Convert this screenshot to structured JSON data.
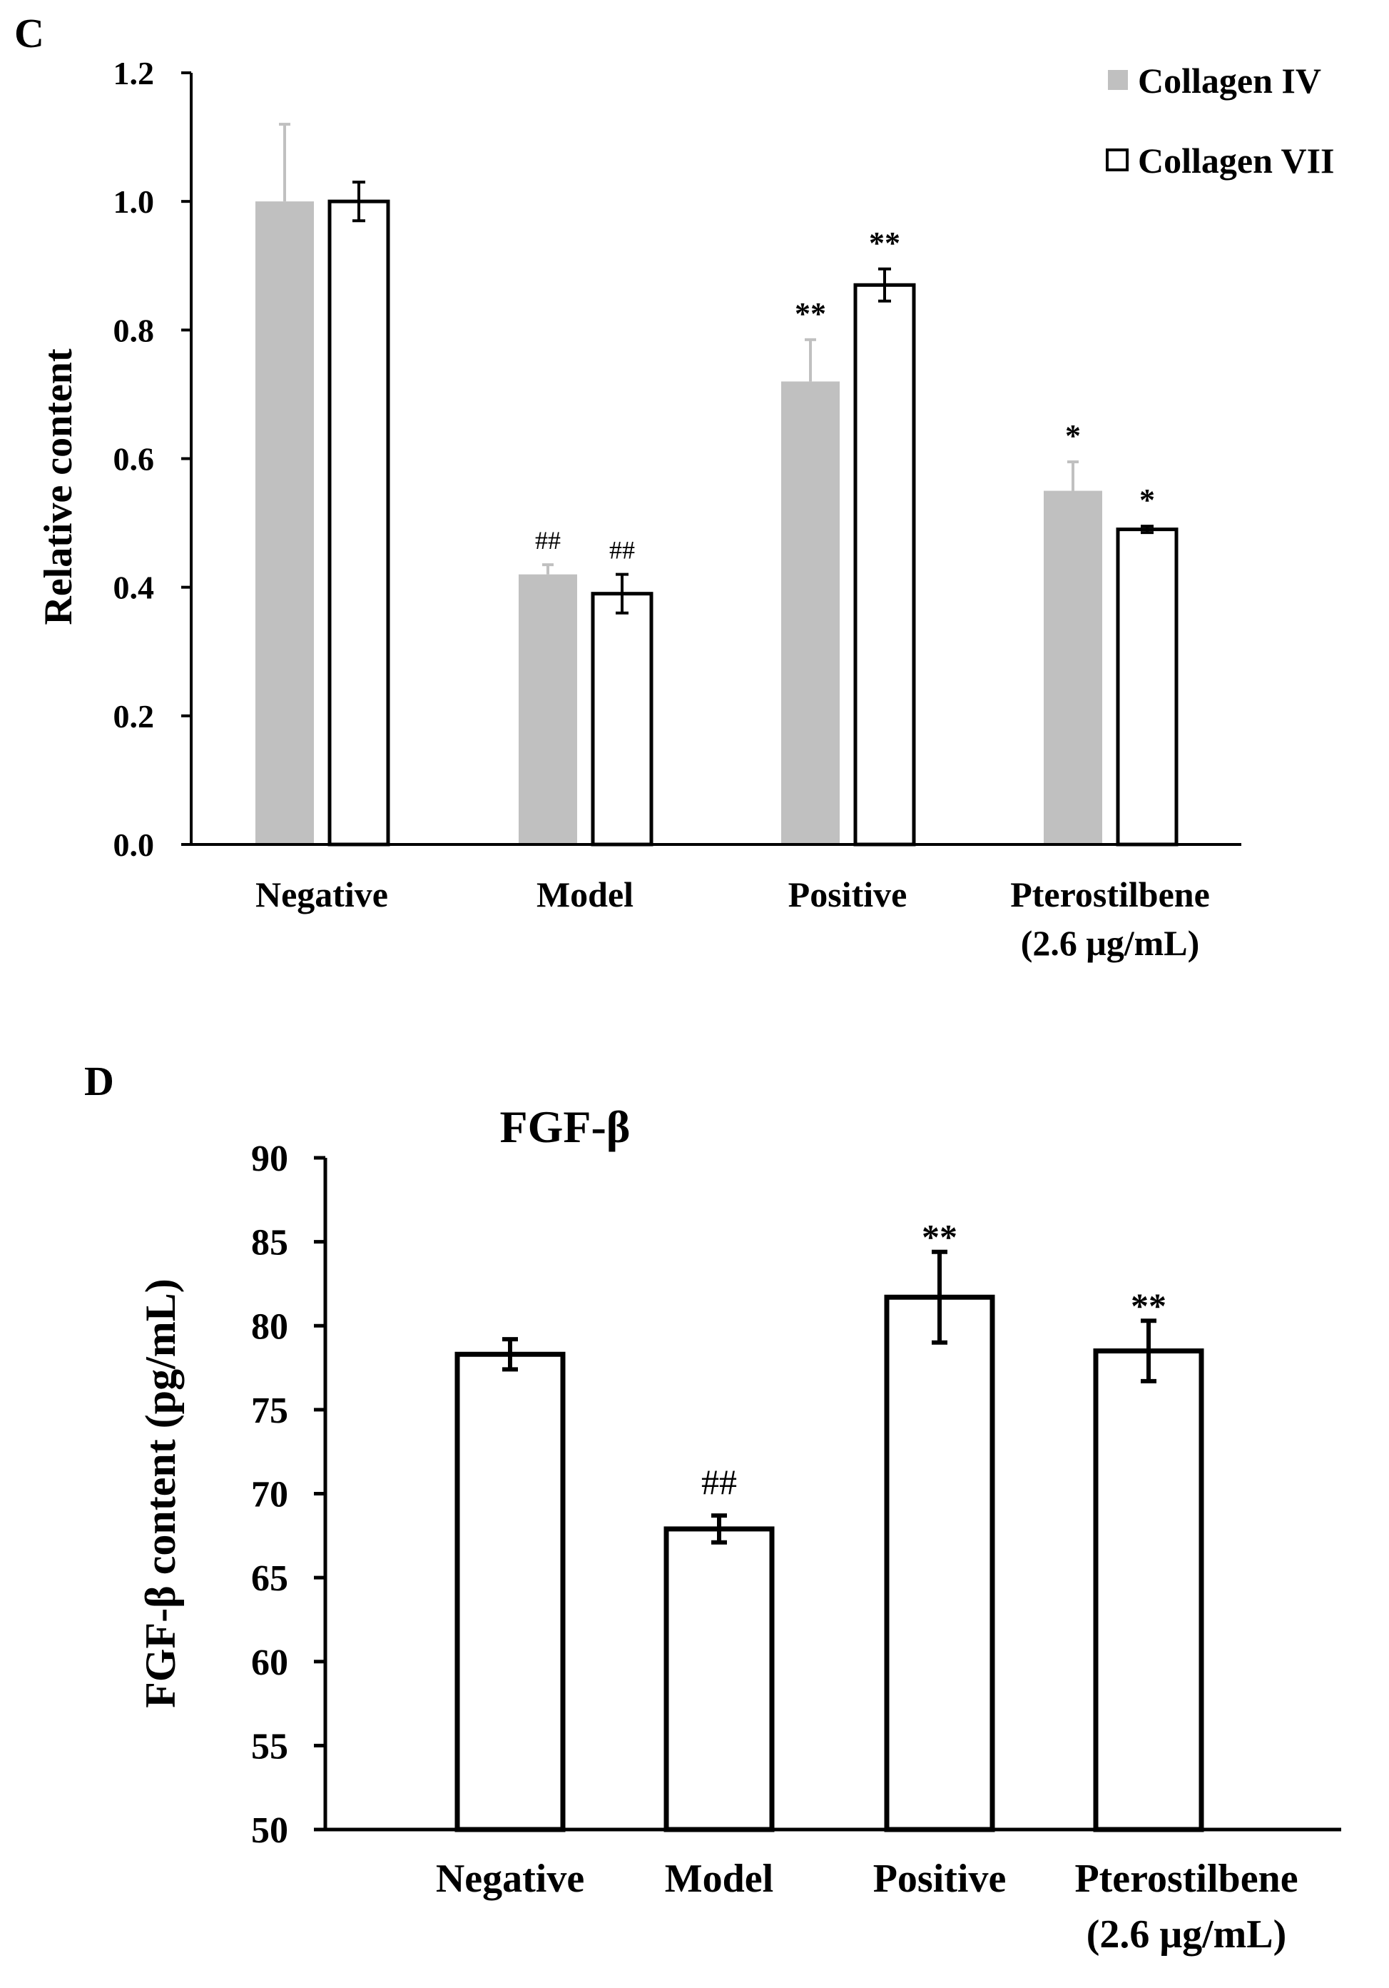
{
  "chart_data": [
    {
      "panel_label": "C",
      "type": "bar",
      "categories": [
        "Negative",
        "Model",
        "Positive",
        "Pterostilbene\n(2.6 μg/mL)"
      ],
      "series": [
        {
          "name": "Collagen IV",
          "values": [
            1.0,
            0.42,
            0.72,
            0.55
          ],
          "errors": [
            0.12,
            0.015,
            0.065,
            0.045
          ],
          "color": "#c0c0c0",
          "style": "filled"
        },
        {
          "name": "Collagen VII",
          "values": [
            1.0,
            0.39,
            0.87,
            0.49
          ],
          "errors": [
            0.03,
            0.03,
            0.025,
            0.005
          ],
          "color": "#ffffff",
          "style": "outline"
        }
      ],
      "significance": [
        [
          "",
          "##",
          "**",
          "*"
        ],
        [
          "",
          "##",
          "**",
          "*"
        ]
      ],
      "ylabel": "Relative content",
      "ylim": [
        0,
        1.2
      ],
      "yticks": [
        "0.0",
        "0.2",
        "0.4",
        "0.6",
        "0.8",
        "1.0",
        "1.2"
      ],
      "legend_position": "top-right",
      "grid": false
    },
    {
      "panel_label": "D",
      "type": "bar",
      "title": "FGF-β",
      "categories": [
        "Negative",
        "Model",
        "Positive",
        "Pterostilbene\n(2.6 μg/mL)"
      ],
      "series": [
        {
          "values": [
            78.3,
            67.9,
            81.7,
            78.5
          ],
          "errors": [
            0.9,
            0.8,
            2.7,
            1.8
          ],
          "color": "#ffffff",
          "style": "outline"
        }
      ],
      "significance": [
        [
          "",
          "##",
          "**",
          "**"
        ]
      ],
      "ylabel": "FGF-β content (pg/mL)",
      "ylim": [
        50,
        90
      ],
      "yticks": [
        "50",
        "55",
        "60",
        "65",
        "70",
        "75",
        "80",
        "85",
        "90"
      ],
      "grid": false
    }
  ]
}
